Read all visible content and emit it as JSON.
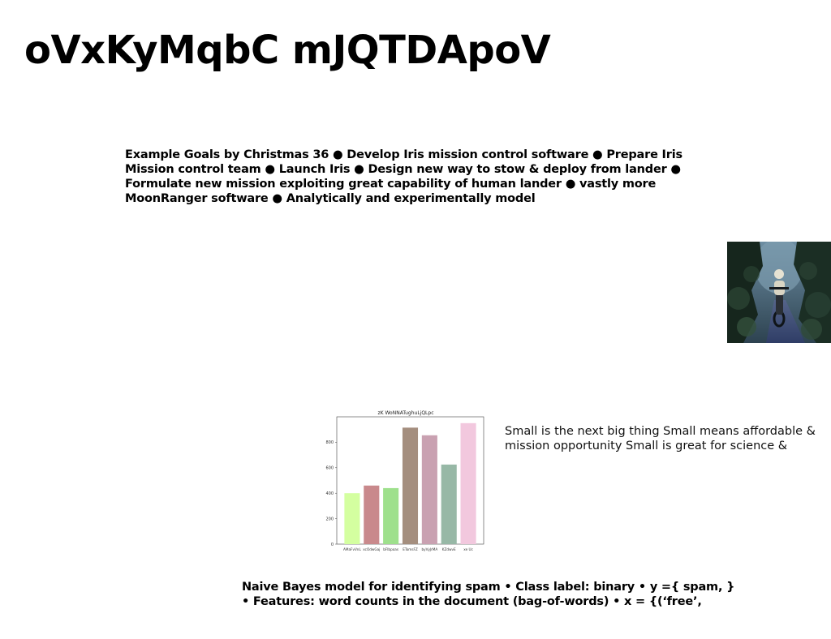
{
  "slide": {
    "title": "oVxKyMqbC mJQTDApoV",
    "goals_text": "Example Goals by Christmas 36 ● Develop Iris mission control software ● Prepare Iris Mission control team ● Launch Iris ● Design new way to stow & deploy from lander ● Formulate new mission exploiting great capability of human lander ● vastly more MoonRanger software ● Analytically and experimentally model",
    "small_text": "Small is the next big thing Small means affordable & mission opportunity Small is great for science &",
    "bayes_text": "Naive Bayes model for identifying spam • Class label: binary • y ={ spam, } • Features: word counts in the document (bag-of-words) • x = {(‘free’,"
  },
  "photo": {
    "icon": "motorcycle-rider-forest-photo",
    "colors": {
      "sky": "#5f7f95",
      "foliage": "#1d3328",
      "path": "#3e4f78"
    }
  },
  "chart_data": {
    "type": "bar",
    "title": "zK WoNNATughuLjQLpc",
    "categories": [
      "AMaFvVnL",
      "xcOdwGaj",
      "bFlbpoas",
      "ETomsFZ",
      "byVyJrMA",
      "KZdwvE",
      "xe Uc"
    ],
    "values": [
      400,
      460,
      440,
      915,
      855,
      625,
      950
    ],
    "colors": [
      "#d4ffa0",
      "#c9898c",
      "#9ee08c",
      "#a48e7e",
      "#c9a1b1",
      "#97b8a6",
      "#f2c8de"
    ],
    "yticks": [
      0,
      200,
      400,
      600,
      800
    ],
    "ylim": [
      0,
      1000
    ],
    "xlabel": "",
    "ylabel": "",
    "grid": false
  }
}
